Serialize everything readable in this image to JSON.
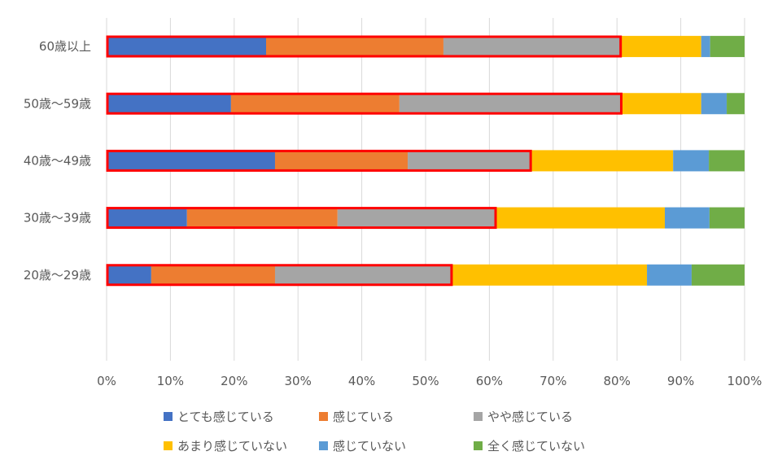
{
  "chart_data": {
    "type": "bar",
    "orientation": "horizontal",
    "stacked": "percent",
    "title": "",
    "xlabel": "",
    "ylabel": "",
    "xlim": [
      0,
      100
    ],
    "x_ticks": [
      "0%",
      "10%",
      "20%",
      "30%",
      "40%",
      "50%",
      "60%",
      "70%",
      "80%",
      "90%",
      "100%"
    ],
    "grid": "vertical",
    "legend_position": "bottom",
    "categories": [
      "60歳以上",
      "50歳〜59歳",
      "40歳〜49歳",
      "30歳〜39歳",
      "20歳〜29歳"
    ],
    "series": [
      {
        "name": "とても感じている",
        "color": "#4472C4",
        "values": [
          25.0,
          19.5,
          26.4,
          12.6,
          7.0
        ]
      },
      {
        "name": "感じている",
        "color": "#ED7D31",
        "values": [
          27.8,
          26.4,
          20.8,
          23.6,
          19.4
        ]
      },
      {
        "name": "やや感じている",
        "color": "#A5A5A5",
        "values": [
          27.9,
          34.9,
          19.4,
          24.9,
          27.8
        ]
      },
      {
        "name": "あまり感じていない",
        "color": "#FFC000",
        "values": [
          12.5,
          12.4,
          22.2,
          26.4,
          30.5
        ]
      },
      {
        "name": "感じていない",
        "color": "#5B9BD5",
        "values": [
          1.4,
          4.0,
          5.6,
          7.0,
          7.0
        ]
      },
      {
        "name": "全く感じていない",
        "color": "#70AD47",
        "values": [
          5.4,
          2.8,
          5.6,
          5.5,
          8.3
        ]
      }
    ],
    "highlight": {
      "description_series": "sum of first three series",
      "color": "#FF0000",
      "values": [
        80.7,
        80.8,
        66.6,
        61.1,
        54.2
      ]
    }
  }
}
